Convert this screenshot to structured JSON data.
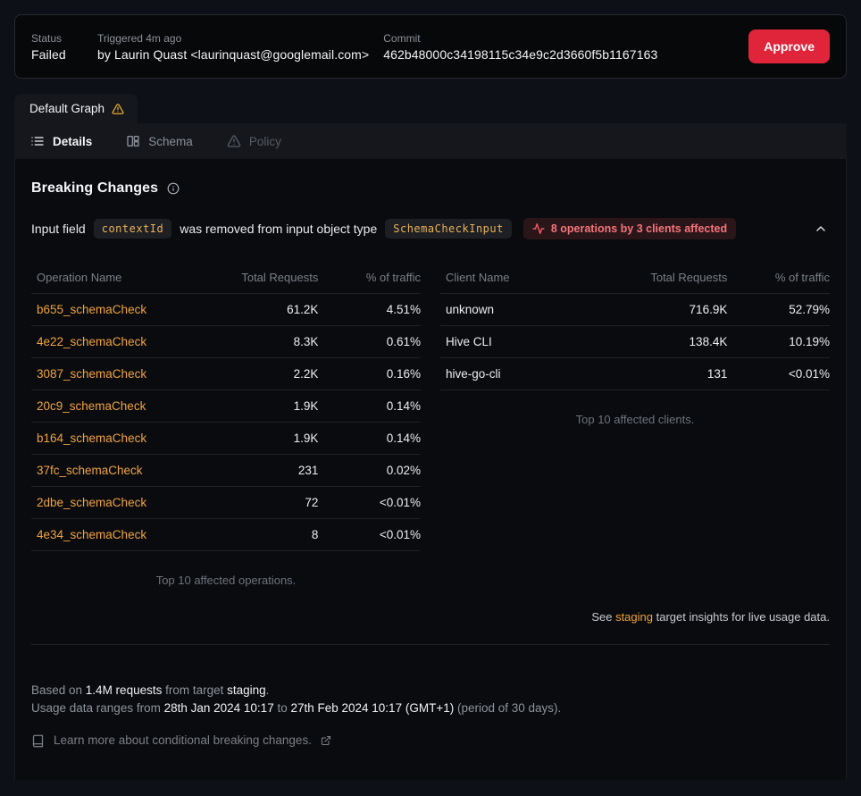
{
  "header": {
    "status_label": "Status",
    "status_value": "Failed",
    "triggered_label": "Triggered 4m ago",
    "triggered_value": "by Laurin Quast <laurinquast@googlemail.com>",
    "commit_label": "Commit",
    "commit_value": "462b48000c34198115c34e9c2d3660f5b1167163",
    "approve_label": "Approve"
  },
  "graph_tab": {
    "label": "Default Graph"
  },
  "tabs": {
    "details": "Details",
    "schema": "Schema",
    "policy": "Policy"
  },
  "breaking_changes": {
    "title": "Breaking Changes",
    "change": {
      "prefix": "Input field",
      "field_code": "contextId",
      "middle": "was removed from input object type",
      "type_code": "SchemaCheckInput",
      "impact_badge": "8 operations by 3 clients affected"
    },
    "operations_table": {
      "columns": [
        "Operation Name",
        "Total Requests",
        "% of traffic"
      ],
      "rows": [
        {
          "name": "b655_schemaCheck",
          "requests": "61.2K",
          "traffic": "4.51%"
        },
        {
          "name": "4e22_schemaCheck",
          "requests": "8.3K",
          "traffic": "0.61%"
        },
        {
          "name": "3087_schemaCheck",
          "requests": "2.2K",
          "traffic": "0.16%"
        },
        {
          "name": "20c9_schemaCheck",
          "requests": "1.9K",
          "traffic": "0.14%"
        },
        {
          "name": "b164_schemaCheck",
          "requests": "1.9K",
          "traffic": "0.14%"
        },
        {
          "name": "37fc_schemaCheck",
          "requests": "231",
          "traffic": "0.02%"
        },
        {
          "name": "2dbe_schemaCheck",
          "requests": "72",
          "traffic": "<0.01%"
        },
        {
          "name": "4e34_schemaCheck",
          "requests": "8",
          "traffic": "<0.01%"
        }
      ],
      "caption": "Top 10 affected operations."
    },
    "clients_table": {
      "columns": [
        "Client Name",
        "Total Requests",
        "% of traffic"
      ],
      "rows": [
        {
          "name": "unknown",
          "requests": "716.9K",
          "traffic": "52.79%"
        },
        {
          "name": "Hive CLI",
          "requests": "138.4K",
          "traffic": "10.19%"
        },
        {
          "name": "hive-go-cli",
          "requests": "131",
          "traffic": "<0.01%"
        }
      ],
      "caption": "Top 10 affected clients."
    },
    "insights_note": {
      "prefix": "See ",
      "link": "staging",
      "suffix": " target insights for live usage data."
    }
  },
  "footer": {
    "line1": {
      "prefix": "Based on ",
      "requests": "1.4M requests",
      "mid": " from target ",
      "target": "staging",
      "suffix": "."
    },
    "line2": {
      "prefix": "Usage data ranges from ",
      "from_date": "28th Jan 2024 10:17",
      "mid": " to ",
      "to_date": "27th Feb 2024 10:17 (GMT+1)",
      "suffix": " (period of 30 days)."
    },
    "learn_more": "Learn more about conditional breaking changes."
  },
  "colors": {
    "approve_red": "#e0243a",
    "impact_red": "#f4747c",
    "link_orange": "#f2a33c",
    "code_amber": "#e9b257",
    "warning_amber": "#e3a82e"
  }
}
